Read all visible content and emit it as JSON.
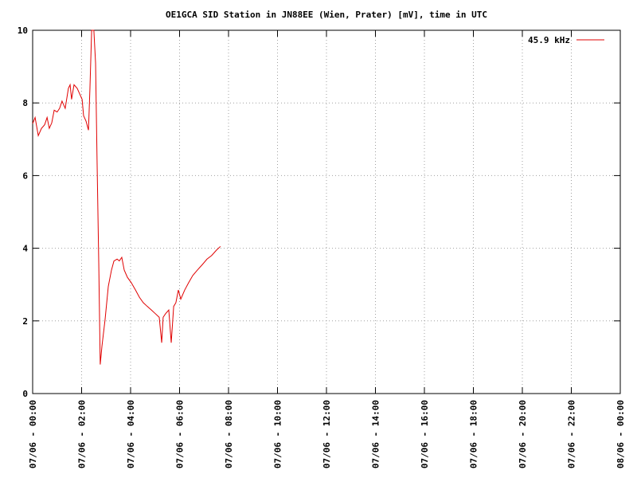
{
  "chart_data": {
    "type": "line",
    "title": "OE1GCA SID Station in JN88EE (Wien, Prater) [mV], time in UTC",
    "x": [
      0,
      0.1,
      0.23,
      0.36,
      0.49,
      0.59,
      0.68,
      0.78,
      0.88,
      1.0,
      1.1,
      1.2,
      1.33,
      1.46,
      1.53,
      1.59,
      1.69,
      1.82,
      1.92,
      2.02,
      2.08,
      2.18,
      2.28,
      2.34,
      2.41,
      2.5,
      2.57,
      2.63,
      2.7,
      2.76,
      2.83,
      2.96,
      3.09,
      3.22,
      3.32,
      3.45,
      3.54,
      3.64,
      3.74,
      3.87,
      4.03,
      4.2,
      4.36,
      4.52,
      4.68,
      4.85,
      5.01,
      5.17,
      5.27,
      5.33,
      5.43,
      5.56,
      5.66,
      5.76,
      5.85,
      5.95,
      6.05,
      6.21,
      6.37,
      6.54,
      6.73,
      6.93,
      7.12,
      7.31,
      7.51,
      7.67
    ],
    "series": [
      {
        "name": "45.9 kHz",
        "color": "#e00000",
        "values": [
          7.43,
          7.6,
          7.1,
          7.3,
          7.4,
          7.6,
          7.3,
          7.45,
          7.8,
          7.75,
          7.85,
          8.05,
          7.85,
          8.4,
          8.5,
          8.1,
          8.5,
          8.4,
          8.25,
          8.1,
          7.65,
          7.5,
          7.25,
          8.4,
          10,
          10,
          9.1,
          6.45,
          3.6,
          0.8,
          1.3,
          2.05,
          2.95,
          3.4,
          3.65,
          3.7,
          3.65,
          3.75,
          3.4,
          3.2,
          3.05,
          2.85,
          2.65,
          2.5,
          2.4,
          2.3,
          2.2,
          2.1,
          1.4,
          2.1,
          2.2,
          2.3,
          1.4,
          2.4,
          2.5,
          2.85,
          2.6,
          2.85,
          3.05,
          3.25,
          3.4,
          3.55,
          3.7,
          3.8,
          3.95,
          4.05
        ]
      }
    ],
    "xlim": [
      0,
      24
    ],
    "xticks": [
      {
        "value": 0,
        "label": "07/06 - 00:00"
      },
      {
        "value": 2,
        "label": "07/06 - 02:00"
      },
      {
        "value": 4,
        "label": "07/06 - 04:00"
      },
      {
        "value": 6,
        "label": "07/06 - 06:00"
      },
      {
        "value": 8,
        "label": "07/06 - 08:00"
      },
      {
        "value": 10,
        "label": "07/06 - 10:00"
      },
      {
        "value": 12,
        "label": "07/06 - 12:00"
      },
      {
        "value": 14,
        "label": "07/06 - 14:00"
      },
      {
        "value": 16,
        "label": "07/06 - 16:00"
      },
      {
        "value": 18,
        "label": "07/06 - 18:00"
      },
      {
        "value": 20,
        "label": "07/06 - 20:00"
      },
      {
        "value": 22,
        "label": "07/06 - 22:00"
      },
      {
        "value": 24,
        "label": "08/06 - 00:00"
      }
    ],
    "ylim": [
      0,
      10
    ],
    "yticks": [
      0,
      2,
      4,
      6,
      8,
      10
    ],
    "grid": true,
    "legend": "top-right"
  }
}
